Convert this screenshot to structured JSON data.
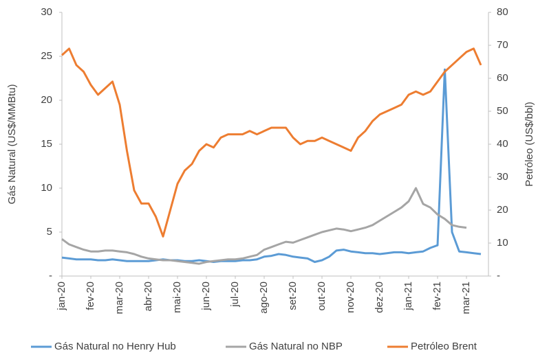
{
  "chart_data": {
    "type": "line",
    "y_label": "Gás Natural (US$/MMBtu)",
    "y2_label": "Petróleo (US$/bbl)",
    "categories": [
      "jan-20",
      null,
      null,
      null,
      "fev-20",
      null,
      null,
      null,
      "mar-20",
      null,
      null,
      null,
      "abr-20",
      null,
      null,
      null,
      "mai-20",
      null,
      null,
      null,
      "jun-20",
      null,
      null,
      null,
      "jul-20",
      null,
      null,
      null,
      "ago-20",
      null,
      null,
      null,
      "set-20",
      null,
      null,
      null,
      "out-20",
      null,
      null,
      null,
      "nov-20",
      null,
      null,
      null,
      "dez-20",
      null,
      null,
      null,
      "jan-21",
      null,
      null,
      null,
      "fev-21",
      null,
      null,
      null,
      "mar-21",
      null,
      null
    ],
    "series": [
      {
        "name": "Gás Natural no Henry Hub",
        "color": "#5b9bd5",
        "axis": "y",
        "values": [
          2.1,
          2.0,
          1.9,
          1.9,
          1.9,
          1.8,
          1.8,
          1.9,
          1.8,
          1.7,
          1.7,
          1.7,
          1.7,
          1.8,
          1.9,
          1.8,
          1.8,
          1.7,
          1.7,
          1.8,
          1.7,
          1.6,
          1.7,
          1.7,
          1.7,
          1.8,
          1.8,
          1.9,
          2.2,
          2.3,
          2.5,
          2.4,
          2.2,
          2.1,
          2.0,
          1.6,
          1.8,
          2.2,
          2.9,
          3.0,
          2.8,
          2.7,
          2.6,
          2.6,
          2.5,
          2.6,
          2.7,
          2.7,
          2.6,
          2.7,
          2.8,
          3.2,
          3.5,
          23.5,
          5.0,
          2.8,
          2.7,
          2.6,
          2.5
        ]
      },
      {
        "name": "Gás Natural no NBP",
        "color": "#a5a5a5",
        "axis": "y",
        "values": [
          4.2,
          3.6,
          3.3,
          3.0,
          2.8,
          2.8,
          2.9,
          2.9,
          2.8,
          2.7,
          2.5,
          2.2,
          2.0,
          1.9,
          1.8,
          1.8,
          1.7,
          1.6,
          1.5,
          1.4,
          1.6,
          1.7,
          1.8,
          1.9,
          1.9,
          2.0,
          2.2,
          2.4,
          3.0,
          3.3,
          3.6,
          3.9,
          3.8,
          4.1,
          4.4,
          4.7,
          5.0,
          5.2,
          5.4,
          5.3,
          5.1,
          5.3,
          5.5,
          5.8,
          6.3,
          6.8,
          7.3,
          7.8,
          8.5,
          10.0,
          8.2,
          7.8,
          7.0,
          6.5,
          5.8,
          5.6,
          5.5,
          null,
          null
        ]
      },
      {
        "name": "Petróleo Brent",
        "color": "#ed7d31",
        "axis": "y2",
        "values": [
          67,
          69,
          64,
          62,
          58,
          55,
          57,
          59,
          52,
          38,
          26,
          22,
          22,
          18,
          12,
          20,
          28,
          32,
          34,
          38,
          40,
          39,
          42,
          43,
          43,
          43,
          44,
          43,
          44,
          45,
          45,
          45,
          42,
          40,
          41,
          41,
          42,
          41,
          40,
          39,
          38,
          42,
          44,
          47,
          49,
          50,
          51,
          52,
          55,
          56,
          55,
          56,
          59,
          62,
          64,
          66,
          68,
          69,
          64
        ]
      }
    ],
    "ylim": [
      0,
      30
    ],
    "yticks": [
      {
        "value": 0,
        "label": "-"
      },
      5,
      10,
      15,
      20,
      25,
      30
    ],
    "y2lim": [
      0,
      80
    ],
    "y2ticks": [
      {
        "value": 0,
        "label": "-"
      },
      10,
      20,
      30,
      40,
      50,
      60,
      70,
      80
    ],
    "grid": false,
    "legend": "bottom"
  }
}
